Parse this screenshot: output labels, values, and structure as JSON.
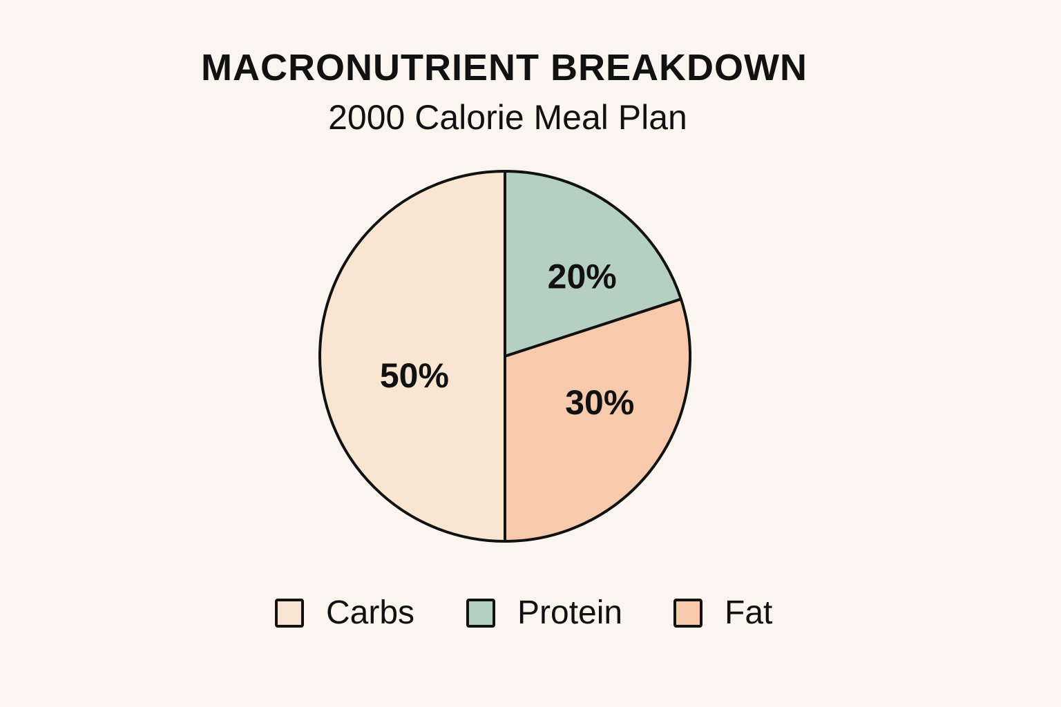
{
  "chart_data": {
    "type": "pie",
    "title": "MACRONUTRIENT BREAKDOWN",
    "subtitle": "2000 Calorie Meal Plan",
    "slices": [
      {
        "name": "Carbs",
        "value": 50,
        "label": "50%",
        "color": "#f9e6d2"
      },
      {
        "name": "Protein",
        "value": 20,
        "label": "20%",
        "color": "#b5cfc2"
      },
      {
        "name": "Fat",
        "value": 30,
        "label": "30%",
        "color": "#f7c9ad"
      }
    ],
    "legend": [
      "Carbs",
      "Protein",
      "Fat"
    ],
    "legend_placement": "bottom",
    "outline_color": "#111111",
    "background_color": "#fbf5ef"
  }
}
